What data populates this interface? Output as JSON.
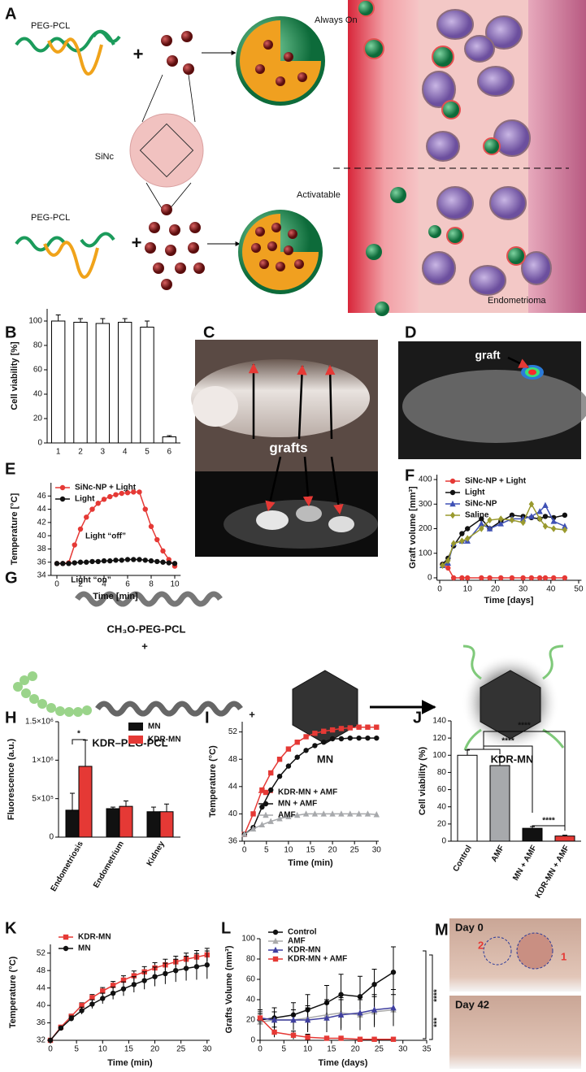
{
  "figure": {
    "panel_a": {
      "letter": "A",
      "polymer_top": "PEG-PCL",
      "polymer_bottom": "PEG-PCL",
      "dye": "SiNc",
      "plus": "+",
      "state_top": "Always On",
      "state_bottom": "Activatable",
      "tissue": "Endometrioma"
    },
    "panel_c": {
      "letter": "C",
      "label": "grafts"
    },
    "panel_d": {
      "letter": "D",
      "label": "graft"
    },
    "panel_g": {
      "letter": "G",
      "polymer_1": "CH₃O-PEG-PCL",
      "polymer_2": "KDR–PEG-PCL",
      "plus": "+",
      "particle": "MN",
      "product": "KDR-MN"
    },
    "panel_m": {
      "letter": "M",
      "day_0": "Day 0",
      "day_42": "Day 42",
      "site_1": "1",
      "site_2": "2"
    }
  },
  "chart_data": [
    {
      "type": "bar",
      "panel": "B",
      "ylabel": "Cell viability [%]",
      "categories": [
        "1",
        "2",
        "3",
        "4",
        "5",
        "6"
      ],
      "values": [
        100,
        99,
        98,
        99,
        95,
        5
      ],
      "errors": [
        5,
        3,
        4,
        3,
        5,
        1
      ],
      "color": "#ffffff",
      "ylim": [
        0,
        110
      ],
      "yticks": [
        0,
        20,
        40,
        60,
        80,
        100
      ]
    },
    {
      "type": "line",
      "panel": "E",
      "xlabel": "Time [min]",
      "ylabel": "Temperature [°C]",
      "x": [
        0,
        0.5,
        1,
        1.5,
        2,
        2.5,
        3,
        3.5,
        4,
        4.5,
        5,
        5.5,
        6,
        6.5,
        7,
        7.5,
        8,
        8.5,
        9,
        9.5,
        10
      ],
      "series": [
        {
          "name": "SiNc-NP + Light",
          "color": "#e53935",
          "marker": "circle",
          "values": [
            35.8,
            35.8,
            35.9,
            38.6,
            41.0,
            42.8,
            44.0,
            44.9,
            45.5,
            45.9,
            46.2,
            46.4,
            46.5,
            46.6,
            46.6,
            44.0,
            41.4,
            39.4,
            37.7,
            36.4,
            35.4
          ]
        },
        {
          "name": "Light",
          "color": "#111111",
          "marker": "circle",
          "values": [
            35.8,
            35.8,
            35.8,
            35.9,
            36.0,
            36.0,
            36.1,
            36.1,
            36.2,
            36.2,
            36.3,
            36.3,
            36.4,
            36.4,
            36.4,
            36.3,
            36.2,
            36.1,
            36.0,
            35.9,
            35.8
          ]
        }
      ],
      "xlim": [
        -0.5,
        10.5
      ],
      "xticks": [
        0,
        2,
        4,
        6,
        8,
        10
      ],
      "ylim": [
        34,
        48
      ],
      "yticks": [
        34,
        36,
        38,
        40,
        42,
        44,
        46
      ],
      "annotations": [
        "Light “off”",
        "Light “on”"
      ]
    },
    {
      "type": "line",
      "panel": "F",
      "xlabel": "Time [days]",
      "ylabel": "Graft volume [mm³]",
      "x": [
        1,
        3,
        5,
        8,
        10,
        15,
        18,
        22,
        26,
        30,
        33,
        36,
        38,
        41,
        45
      ],
      "series": [
        {
          "name": "SiNc-NP + Light",
          "color": "#e53935",
          "marker": "circle",
          "values": [
            55,
            40,
            0,
            0,
            0,
            0,
            0,
            0,
            0,
            0,
            0,
            0,
            0,
            0,
            0
          ]
        },
        {
          "name": "Light",
          "color": "#111111",
          "marker": "circle",
          "values": [
            55,
            80,
            130,
            180,
            200,
            240,
            200,
            230,
            255,
            250,
            245,
            240,
            250,
            245,
            255
          ]
        },
        {
          "name": "SiNc-NP",
          "color": "#3f51b5",
          "marker": "triangle",
          "values": [
            50,
            60,
            140,
            150,
            150,
            220,
            200,
            220,
            240,
            240,
            250,
            270,
            295,
            230,
            210
          ]
        },
        {
          "name": "Saline",
          "color": "#9a9a2e",
          "marker": "diamond",
          "values": [
            50,
            70,
            140,
            150,
            160,
            200,
            235,
            240,
            235,
            225,
            300,
            240,
            210,
            200,
            195
          ]
        }
      ],
      "xlim": [
        -1,
        51
      ],
      "xticks": [
        0,
        10,
        20,
        30,
        40,
        50
      ],
      "ylim": [
        -10,
        420
      ],
      "yticks": [
        0,
        100,
        200,
        300,
        400
      ]
    },
    {
      "type": "bar",
      "panel": "H",
      "ylabel": "Fluorescence (a.u.)",
      "categories": [
        "Endometriosis",
        "Endometrium",
        "Kidney"
      ],
      "series": [
        {
          "name": "MN",
          "color": "#111111",
          "values": [
            350000,
            370000,
            330000
          ],
          "errors": [
            220000,
            20000,
            60000
          ]
        },
        {
          "name": "KDR-MN",
          "color": "#e53935",
          "values": [
            920000,
            400000,
            330000
          ],
          "errors": [
            340000,
            70000,
            100000
          ]
        }
      ],
      "ylim": [
        0,
        1500000
      ],
      "yticks": [
        0,
        {
          "value": 500000,
          "label": "5×10⁵"
        },
        {
          "value": 1000000,
          "label": "1×10⁶"
        },
        {
          "value": 1500000,
          "label": "1.5×10⁶"
        }
      ],
      "annotations": [
        "*"
      ]
    },
    {
      "type": "line",
      "panel": "I",
      "xlabel": "Time (min)",
      "ylabel": "Temperature (°C)",
      "x": [
        0,
        2,
        4,
        6,
        8,
        10,
        12,
        14,
        16,
        18,
        20,
        22,
        24,
        26,
        28,
        30
      ],
      "series": [
        {
          "name": "KDR-MN + AMF",
          "color": "#e53935",
          "marker": "square",
          "values": [
            37,
            40,
            43.5,
            46,
            48,
            49.5,
            50.5,
            51.3,
            51.8,
            52.1,
            52.3,
            52.5,
            52.6,
            52.7,
            52.7,
            52.7
          ]
        },
        {
          "name": "MN + AMF",
          "color": "#111111",
          "marker": "circle",
          "values": [
            37,
            38,
            41,
            43.5,
            45.5,
            47,
            48.3,
            49.3,
            50,
            50.5,
            51,
            51,
            51.1,
            51.1,
            51.1,
            51.1
          ]
        },
        {
          "name": "AMF",
          "color": "#a7a9ac",
          "marker": "triangle",
          "values": [
            37,
            37.8,
            38.4,
            38.9,
            39.3,
            39.6,
            39.8,
            40,
            40,
            40,
            40,
            40,
            40,
            40,
            40,
            39.9
          ]
        }
      ],
      "xlim": [
        -0.5,
        30.5
      ],
      "xticks": [
        0,
        5,
        10,
        15,
        20,
        25,
        30
      ],
      "ylim": [
        36,
        53.5
      ],
      "yticks": [
        36,
        40,
        44,
        48,
        52
      ]
    },
    {
      "type": "bar",
      "panel": "J",
      "ylabel": "Cell viability (%)",
      "categories": [
        "Control",
        "AMF",
        "MN + AMF",
        "KDR-MN + AMF"
      ],
      "values": [
        100,
        88,
        15,
        6
      ],
      "errors": [
        6,
        10,
        2,
        1
      ],
      "colors": [
        "#ffffff",
        "#a7a9ac",
        "#111111",
        "#e53935"
      ],
      "ylim": [
        0,
        140
      ],
      "yticks": [
        0,
        20,
        40,
        60,
        80,
        100,
        120,
        140
      ],
      "annotations": [
        "****",
        "****",
        "****"
      ]
    },
    {
      "type": "line",
      "panel": "K",
      "xlabel": "Time (min)",
      "ylabel": "Temperature (°C)",
      "x": [
        0,
        2,
        4,
        6,
        8,
        10,
        12,
        14,
        16,
        18,
        20,
        22,
        24,
        26,
        28,
        30
      ],
      "series": [
        {
          "name": "KDR-MN",
          "color": "#e53935",
          "marker": "square",
          "values": [
            32,
            35,
            37.5,
            40,
            41.8,
            43.3,
            44.6,
            45.8,
            46.8,
            47.7,
            48.6,
            49.3,
            50,
            50.6,
            51.1,
            51.6
          ],
          "errors": [
            0,
            0.3,
            0.5,
            0.6,
            0.7,
            0.8,
            0.9,
            1,
            1.1,
            1.2,
            1.2,
            1.3,
            1.3,
            1.4,
            1.5,
            1.5
          ]
        },
        {
          "name": "MN",
          "color": "#111111",
          "marker": "circle",
          "values": [
            32,
            34.8,
            37,
            38.8,
            40.3,
            41.6,
            42.8,
            43.8,
            44.8,
            45.7,
            46.6,
            47.3,
            48,
            48.5,
            48.9,
            49.3
          ],
          "errors": [
            0,
            0.3,
            0.6,
            0.8,
            1,
            1.2,
            1.4,
            1.6,
            1.8,
            2,
            2.2,
            2.4,
            2.6,
            2.8,
            3,
            3.2
          ]
        }
      ],
      "xlim": [
        0,
        30.5
      ],
      "xticks": [
        0,
        5,
        10,
        15,
        20,
        25,
        30
      ],
      "ylim": [
        32,
        54
      ],
      "yticks": [
        32,
        36,
        40,
        44,
        48,
        52
      ]
    },
    {
      "type": "line",
      "panel": "L",
      "xlabel": "Time (days)",
      "ylabel": "Grafts Volume (mm³)",
      "x": [
        0,
        3,
        7,
        10,
        14,
        17,
        21,
        24,
        28
      ],
      "series": [
        {
          "name": "Control",
          "color": "#111111",
          "marker": "circle",
          "values": [
            20,
            22,
            25,
            30,
            37,
            45,
            43,
            55,
            67
          ],
          "errors": [
            8,
            10,
            12,
            15,
            17,
            20,
            20,
            15,
            25
          ]
        },
        {
          "name": "AMF",
          "color": "#aaaaaa",
          "marker": "triangle",
          "values": [
            18,
            20,
            20,
            22,
            25,
            27,
            25,
            28,
            30
          ],
          "errors": [
            8,
            8,
            10,
            12,
            15,
            15,
            15,
            15,
            15
          ]
        },
        {
          "name": "KDR-MN",
          "color": "#3f3f9f",
          "marker": "triangle",
          "values": [
            22,
            20,
            20,
            20,
            22,
            25,
            27,
            30,
            32
          ],
          "errors": [
            8,
            8,
            10,
            12,
            14,
            15,
            15,
            15,
            18
          ]
        },
        {
          "name": "KDR-MN + AMF",
          "color": "#e53935",
          "marker": "square",
          "values": [
            22,
            8,
            5,
            3,
            2,
            2,
            1,
            1,
            1
          ],
          "errors": [
            6,
            5,
            4,
            3,
            2,
            2,
            1,
            1,
            1
          ]
        }
      ],
      "xlim": [
        0,
        35
      ],
      "xticks": [
        0,
        5,
        10,
        15,
        20,
        25,
        30,
        35
      ],
      "ylim": [
        0,
        100
      ],
      "yticks": [
        0,
        20,
        40,
        60,
        80,
        100
      ],
      "annotations": [
        "****",
        "***"
      ]
    }
  ]
}
